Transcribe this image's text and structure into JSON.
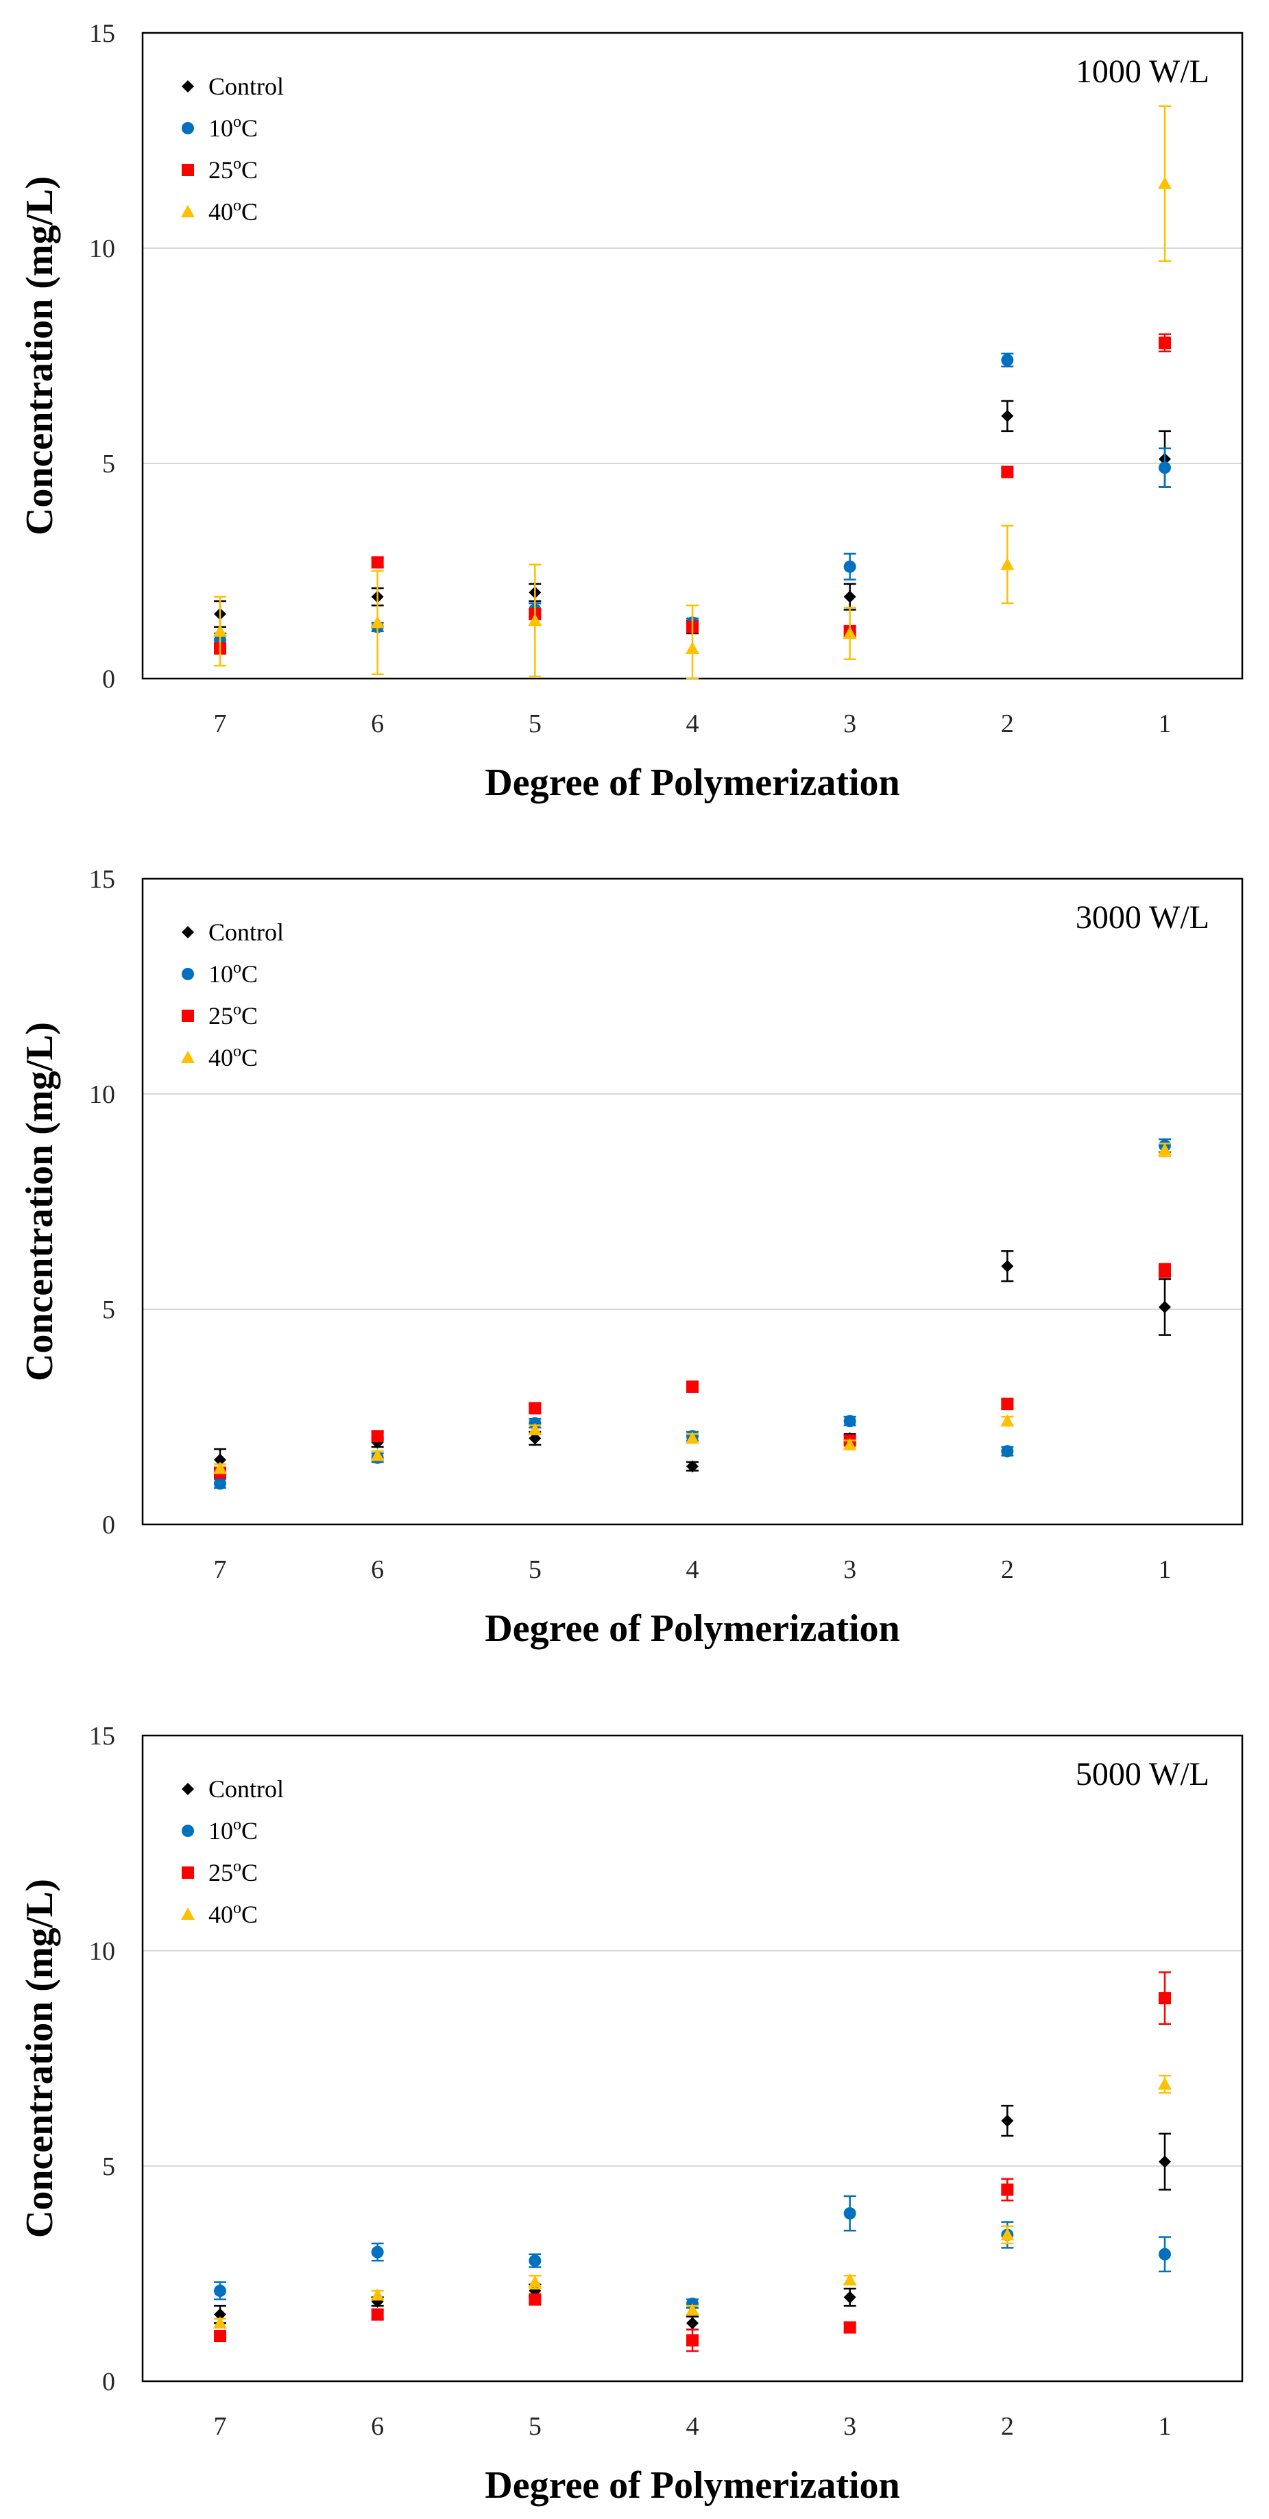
{
  "chart_data": [
    {
      "type": "scatter",
      "label": "1000 W/L",
      "categories": [
        "7",
        "6",
        "5",
        "4",
        "3",
        "2",
        "1"
      ],
      "xlabel": "Degree of Polymerization",
      "ylabel": "Concentration (mg/L)",
      "ylim": [
        0,
        15
      ],
      "yticks": [
        "0",
        "5",
        "10",
        "15"
      ],
      "grid": true,
      "legend": "top-left",
      "series": [
        {
          "name": "Control",
          "marker": "diamond",
          "color": "#000000",
          "values": [
            1.5,
            1.9,
            2.0,
            1.2,
            1.9,
            6.1,
            5.1
          ],
          "errors": [
            0.3,
            0.2,
            0.2,
            0.15,
            0.3,
            0.35,
            0.65
          ]
        },
        {
          "name": "10oC",
          "base": "10",
          "sup": "o",
          "unit": "C",
          "marker": "circle",
          "color": "#0070C0",
          "values": [
            0.9,
            1.2,
            1.6,
            1.3,
            2.6,
            7.4,
            4.9
          ],
          "errors": [
            0.15,
            0.1,
            0.15,
            0.1,
            0.3,
            0.15,
            0.45
          ]
        },
        {
          "name": "25oC",
          "base": "25",
          "sup": "o",
          "unit": "C",
          "marker": "square",
          "color": "#FF0000",
          "values": [
            0.7,
            2.7,
            1.5,
            1.2,
            1.1,
            4.8,
            7.8
          ],
          "errors": [
            0.1,
            0.1,
            0.1,
            0.1,
            0.1,
            0.1,
            0.2
          ]
        },
        {
          "name": "40oC",
          "base": "40",
          "sup": "o",
          "unit": "C",
          "marker": "triangle",
          "color": "#FFC000",
          "values": [
            1.1,
            1.3,
            1.35,
            0.7,
            1.05,
            2.65,
            11.5
          ],
          "errors": [
            0.8,
            1.2,
            1.3,
            1.0,
            0.6,
            0.9,
            1.8
          ]
        }
      ]
    },
    {
      "type": "scatter",
      "label": "3000 W/L",
      "categories": [
        "7",
        "6",
        "5",
        "4",
        "3",
        "2",
        "1"
      ],
      "xlabel": "Degree of Polymerization",
      "ylabel": "Concentration (mg/L)",
      "ylim": [
        0,
        15
      ],
      "yticks": [
        "0",
        "5",
        "10",
        "15"
      ],
      "grid": true,
      "legend": "top-left",
      "series": [
        {
          "name": "Control",
          "marker": "diamond",
          "color": "#000000",
          "values": [
            1.5,
            1.9,
            2.0,
            1.35,
            2.0,
            6.0,
            5.05
          ],
          "errors": [
            0.25,
            0.1,
            0.15,
            0.1,
            0.1,
            0.35,
            0.65
          ]
        },
        {
          "name": "10oC",
          "base": "10",
          "sup": "o",
          "unit": "C",
          "marker": "circle",
          "color": "#0070C0",
          "values": [
            0.95,
            1.55,
            2.35,
            2.05,
            2.4,
            1.7,
            8.8
          ],
          "errors": [
            0.1,
            0.1,
            0.1,
            0.1,
            0.1,
            0.1,
            0.15
          ]
        },
        {
          "name": "25oC",
          "base": "25",
          "sup": "o",
          "unit": "C",
          "marker": "square",
          "color": "#FF0000",
          "values": [
            1.2,
            2.05,
            2.7,
            3.2,
            1.95,
            2.8,
            5.9
          ],
          "errors": [
            0.1,
            0.1,
            0.1,
            0.1,
            0.1,
            0.1,
            0.15
          ]
        },
        {
          "name": "40oC",
          "base": "40",
          "sup": "o",
          "unit": "C",
          "marker": "triangle",
          "color": "#FFC000",
          "values": [
            1.3,
            1.6,
            2.2,
            2.0,
            1.85,
            2.4,
            8.7
          ],
          "errors": [
            0.1,
            0.1,
            0.1,
            0.1,
            0.1,
            0.1,
            0.15
          ]
        }
      ]
    },
    {
      "type": "scatter",
      "label": "5000 W/L",
      "categories": [
        "7",
        "6",
        "5",
        "4",
        "3",
        "2",
        "1"
      ],
      "xlabel": "Degree of Polymerization",
      "ylabel": "Concentration (mg/L)",
      "ylim": [
        0,
        15
      ],
      "yticks": [
        "0",
        "5",
        "10",
        "15"
      ],
      "grid": true,
      "legend": "top-left",
      "series": [
        {
          "name": "Control",
          "marker": "diamond",
          "color": "#000000",
          "values": [
            1.55,
            1.85,
            2.1,
            1.35,
            1.95,
            6.05,
            5.1
          ],
          "errors": [
            0.2,
            0.1,
            0.15,
            0.15,
            0.2,
            0.35,
            0.65
          ]
        },
        {
          "name": "10oC",
          "base": "10",
          "sup": "o",
          "unit": "C",
          "marker": "circle",
          "color": "#0070C0",
          "values": [
            2.1,
            3.0,
            2.8,
            1.8,
            3.9,
            3.4,
            2.95
          ],
          "errors": [
            0.2,
            0.2,
            0.15,
            0.1,
            0.4,
            0.3,
            0.4
          ]
        },
        {
          "name": "25oC",
          "base": "25",
          "sup": "o",
          "unit": "C",
          "marker": "square",
          "color": "#FF0000",
          "values": [
            1.05,
            1.55,
            1.9,
            0.95,
            1.25,
            4.45,
            8.9
          ],
          "errors": [
            0.1,
            0.1,
            0.1,
            0.25,
            0.1,
            0.25,
            0.6
          ]
        },
        {
          "name": "40oC",
          "base": "40",
          "sup": "o",
          "unit": "C",
          "marker": "triangle",
          "color": "#FFC000",
          "values": [
            1.35,
            2.0,
            2.3,
            1.65,
            2.35,
            3.4,
            6.9
          ],
          "errors": [
            0.1,
            0.1,
            0.15,
            0.1,
            0.1,
            0.2,
            0.2
          ]
        }
      ]
    }
  ]
}
